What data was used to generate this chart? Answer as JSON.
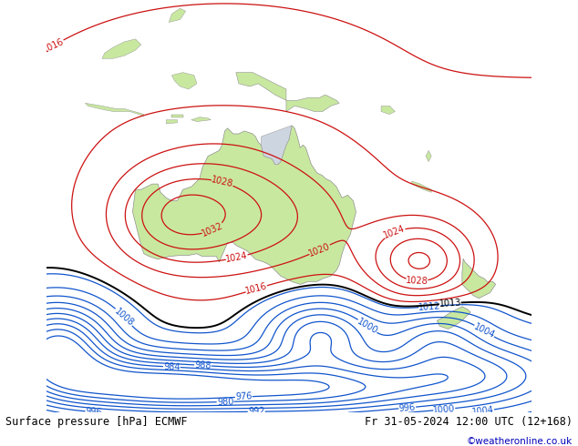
{
  "title_left": "Surface pressure [hPa] ECMWF",
  "title_right": "Fr 31-05-2024 12:00 UTC (12+168)",
  "copyright": "©weatheronline.co.uk",
  "bg_color": "#cdd5e0",
  "land_color": "#c8e8a0",
  "land_edge": "#909090",
  "fig_width": 6.34,
  "fig_height": 4.9,
  "dpi": 100,
  "xlim": [
    98,
    185
  ],
  "ylim": [
    -62,
    12
  ],
  "title_fontsize": 8.5,
  "label_fontsize": 7,
  "copyright_color": "#0000bb"
}
